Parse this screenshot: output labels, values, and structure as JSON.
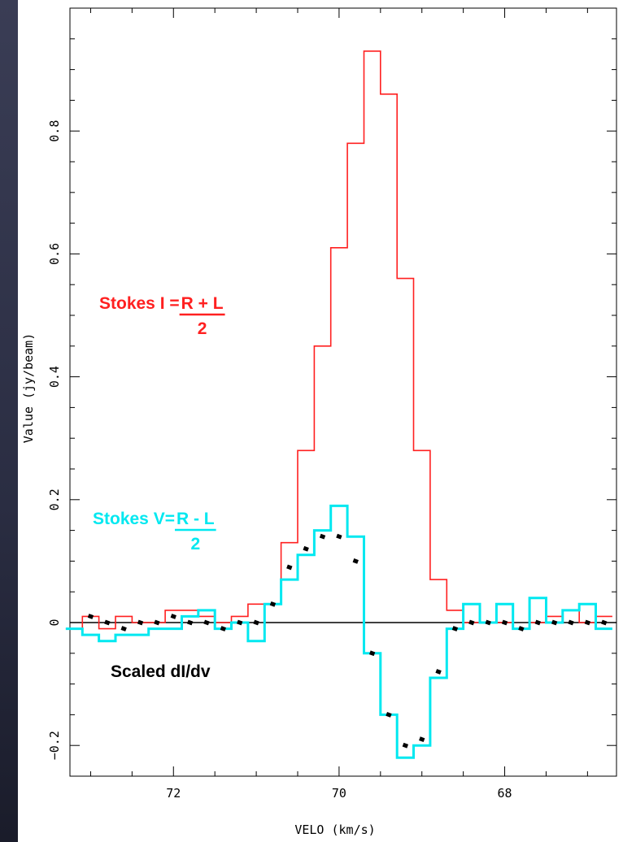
{
  "chart_data": {
    "type": "line",
    "xlabel": "VELO (km/s)",
    "ylabel": "Value (jy/beam)",
    "xlim": [
      73.25,
      66.65
    ],
    "ylim": [
      -0.25,
      1.0
    ],
    "x_ticks": [
      {
        "value": 72,
        "label": "72"
      },
      {
        "value": 70,
        "label": "70"
      },
      {
        "value": 68,
        "label": "68"
      }
    ],
    "y_ticks": [
      {
        "value": -0.2,
        "label": "−0.2"
      },
      {
        "value": 0,
        "label": "0"
      },
      {
        "value": 0.2,
        "label": "0.2"
      },
      {
        "value": 0.4,
        "label": "0.4"
      },
      {
        "value": 0.6,
        "label": "0.6"
      },
      {
        "value": 0.8,
        "label": "0.8"
      }
    ],
    "zero_line": 0,
    "series": [
      {
        "name": "Stokes I",
        "color": "#ff2020",
        "style": "step",
        "x": [
          73.2,
          73.0,
          72.8,
          72.6,
          72.4,
          72.2,
          72.0,
          71.8,
          71.6,
          71.4,
          71.2,
          71.0,
          70.8,
          70.6,
          70.4,
          70.2,
          70.0,
          69.8,
          69.6,
          69.4,
          69.2,
          69.0,
          68.8,
          68.6,
          68.4,
          68.2,
          68.0,
          67.8,
          67.6,
          67.4,
          67.2,
          67.0,
          66.8
        ],
        "values": [
          -0.01,
          0.01,
          -0.01,
          0.01,
          0.0,
          0.0,
          0.02,
          0.02,
          0.01,
          0.0,
          0.01,
          0.03,
          0.03,
          0.13,
          0.28,
          0.45,
          0.61,
          0.78,
          0.93,
          0.86,
          0.56,
          0.28,
          0.07,
          0.02,
          0.0,
          0.0,
          0.0,
          -0.01,
          0.0,
          0.01,
          0.02,
          0.0,
          0.01
        ]
      },
      {
        "name": "Stokes V",
        "color": "#00e8f0",
        "style": "step",
        "x": [
          73.2,
          73.0,
          72.8,
          72.6,
          72.4,
          72.2,
          72.0,
          71.8,
          71.6,
          71.4,
          71.2,
          71.0,
          70.8,
          70.6,
          70.4,
          70.2,
          70.0,
          69.8,
          69.6,
          69.4,
          69.2,
          69.0,
          68.8,
          68.6,
          68.4,
          68.2,
          68.0,
          67.8,
          67.6,
          67.4,
          67.2,
          67.0,
          66.8
        ],
        "values": [
          -0.01,
          -0.02,
          -0.03,
          -0.02,
          -0.02,
          -0.01,
          -0.01,
          0.01,
          0.02,
          -0.01,
          0.0,
          -0.03,
          0.03,
          0.07,
          0.11,
          0.15,
          0.19,
          0.14,
          -0.05,
          -0.15,
          -0.22,
          -0.2,
          -0.09,
          -0.01,
          0.03,
          0.0,
          0.03,
          -0.01,
          0.04,
          0.0,
          0.02,
          0.03,
          -0.01
        ]
      },
      {
        "name": "Scaled dI/dv",
        "color": "#000000",
        "style": "markers",
        "x": [
          73.0,
          72.8,
          72.6,
          72.4,
          72.2,
          72.0,
          71.8,
          71.6,
          71.4,
          71.2,
          71.0,
          70.8,
          70.6,
          70.4,
          70.2,
          70.0,
          69.8,
          69.6,
          69.4,
          69.2,
          69.0,
          68.8,
          68.6,
          68.4,
          68.2,
          68.0,
          67.8,
          67.6,
          67.4,
          67.2,
          67.0,
          66.8
        ],
        "values": [
          0.01,
          0.0,
          -0.01,
          0.0,
          0.0,
          0.01,
          0.0,
          0.0,
          -0.01,
          0.0,
          0.0,
          0.03,
          0.09,
          0.12,
          0.14,
          0.14,
          0.1,
          -0.05,
          -0.15,
          -0.2,
          -0.19,
          -0.08,
          -0.01,
          0.0,
          0.0,
          0.0,
          -0.01,
          0.0,
          0.0,
          0.0,
          0.0,
          0.0
        ]
      }
    ],
    "annotations": [
      {
        "name": "stokes-i",
        "text_main": "Stokes I = ",
        "numerator": "R + L",
        "denominator": "2",
        "color": "#ff2020"
      },
      {
        "name": "stokes-v",
        "text_main": "Stokes V= ",
        "numerator": "R - L",
        "denominator": "2",
        "color": "#00e8f0"
      },
      {
        "name": "scaled",
        "text_main": "Scaled dI/dv",
        "color": "#000000"
      }
    ],
    "grid": false,
    "legend": "none"
  }
}
